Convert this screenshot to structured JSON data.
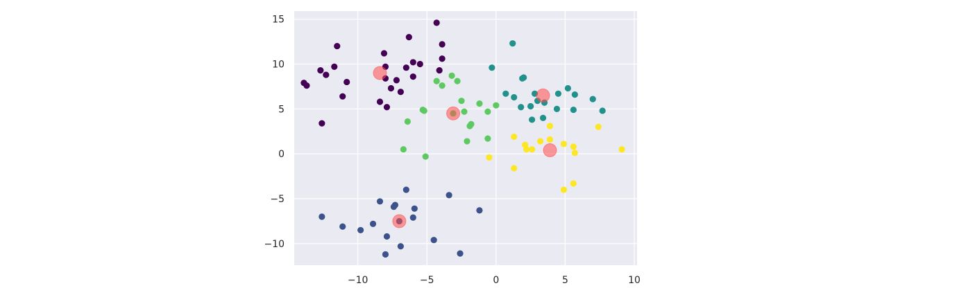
{
  "chart_data": {
    "type": "scatter",
    "title": "",
    "xlabel": "",
    "ylabel": "",
    "xlim": [
      -14.6,
      10.2
    ],
    "ylim": [
      -12.4,
      15.9
    ],
    "xticks": [
      -10,
      -5,
      0,
      5,
      10
    ],
    "yticks": [
      -10,
      -5,
      0,
      5,
      10,
      15
    ],
    "xtick_labels": [
      "−10",
      "−5",
      "0",
      "5",
      "10"
    ],
    "ytick_labels": [
      "−10",
      "−5",
      "0",
      "5",
      "10",
      "15"
    ],
    "grid": true,
    "legend": "none",
    "colors": {
      "background": "#eaeaf2",
      "grid": "#ffffff",
      "cluster_purple": "#440154",
      "cluster_blue": "#3b528b",
      "cluster_teal": "#21918c",
      "cluster_green": "#5ec962",
      "cluster_yellow": "#fde725",
      "centers": "#ff4d4d"
    },
    "series": [
      {
        "color_key": "cluster_purple",
        "points": [
          [
            -4.3,
            14.6
          ],
          [
            -6.3,
            13.0
          ],
          [
            -3.9,
            12.2
          ],
          [
            -11.5,
            12.0
          ],
          [
            -8.1,
            11.2
          ],
          [
            -3.9,
            10.6
          ],
          [
            -6.0,
            10.2
          ],
          [
            -5.5,
            10.0
          ],
          [
            -11.7,
            9.7
          ],
          [
            -8.0,
            9.7
          ],
          [
            -6.5,
            9.6
          ],
          [
            -12.7,
            9.3
          ],
          [
            -4.1,
            9.3
          ],
          [
            -12.3,
            8.8
          ],
          [
            -6.0,
            8.6
          ],
          [
            -8.0,
            8.4
          ],
          [
            -7.2,
            8.2
          ],
          [
            -10.8,
            8.0
          ],
          [
            -13.9,
            7.9
          ],
          [
            -13.7,
            7.6
          ],
          [
            -7.6,
            7.3
          ],
          [
            -6.9,
            6.9
          ],
          [
            -11.1,
            6.4
          ],
          [
            -8.4,
            5.8
          ],
          [
            -7.9,
            5.2
          ],
          [
            -12.6,
            3.4
          ]
        ]
      },
      {
        "color_key": "cluster_blue",
        "points": [
          [
            -6.5,
            -4.0
          ],
          [
            -3.4,
            -4.6
          ],
          [
            -8.4,
            -5.3
          ],
          [
            -7.3,
            -5.7
          ],
          [
            -7.4,
            -5.9
          ],
          [
            -5.9,
            -6.1
          ],
          [
            -1.2,
            -6.3
          ],
          [
            -12.6,
            -7.0
          ],
          [
            -6.0,
            -7.1
          ],
          [
            -7.0,
            -7.5
          ],
          [
            -11.1,
            -8.1
          ],
          [
            -8.9,
            -7.8
          ],
          [
            -9.8,
            -8.5
          ],
          [
            -7.9,
            -9.2
          ],
          [
            -4.5,
            -9.6
          ],
          [
            -6.9,
            -10.3
          ],
          [
            -8.0,
            -11.2
          ],
          [
            -2.6,
            -11.1
          ]
        ]
      },
      {
        "color_key": "cluster_teal",
        "points": [
          [
            1.2,
            12.3
          ],
          [
            -0.3,
            9.6
          ],
          [
            2.0,
            8.5
          ],
          [
            1.9,
            8.4
          ],
          [
            5.2,
            7.3
          ],
          [
            0.7,
            6.7
          ],
          [
            2.8,
            6.7
          ],
          [
            4.5,
            6.7
          ],
          [
            5.7,
            6.6
          ],
          [
            1.3,
            6.3
          ],
          [
            7.0,
            6.1
          ],
          [
            3.0,
            5.9
          ],
          [
            3.5,
            5.7
          ],
          [
            2.5,
            5.3
          ],
          [
            1.8,
            5.2
          ],
          [
            4.4,
            5.0
          ],
          [
            5.6,
            4.9
          ],
          [
            7.7,
            4.8
          ],
          [
            3.4,
            4.0
          ],
          [
            2.6,
            3.8
          ]
        ]
      },
      {
        "color_key": "cluster_green",
        "points": [
          [
            -3.2,
            8.7
          ],
          [
            -2.8,
            8.1
          ],
          [
            -4.3,
            8.1
          ],
          [
            -3.9,
            7.6
          ],
          [
            -2.5,
            5.9
          ],
          [
            -1.2,
            5.6
          ],
          [
            0.0,
            5.4
          ],
          [
            -5.3,
            4.9
          ],
          [
            -5.2,
            4.8
          ],
          [
            -2.3,
            4.7
          ],
          [
            -0.6,
            4.7
          ],
          [
            -3.1,
            4.5
          ],
          [
            -6.4,
            3.6
          ],
          [
            -1.8,
            3.3
          ],
          [
            -1.9,
            3.1
          ],
          [
            -0.6,
            1.7
          ],
          [
            -2.1,
            1.4
          ],
          [
            -6.7,
            0.5
          ],
          [
            -5.1,
            -0.3
          ]
        ]
      },
      {
        "color_key": "cluster_yellow",
        "points": [
          [
            3.9,
            3.1
          ],
          [
            7.4,
            3.0
          ],
          [
            1.3,
            1.9
          ],
          [
            3.9,
            1.6
          ],
          [
            3.2,
            1.4
          ],
          [
            4.9,
            1.1
          ],
          [
            2.1,
            1.0
          ],
          [
            5.6,
            0.8
          ],
          [
            2.2,
            0.5
          ],
          [
            2.6,
            0.5
          ],
          [
            9.1,
            0.5
          ],
          [
            5.7,
            0.1
          ],
          [
            -0.5,
            -0.4
          ],
          [
            1.3,
            -1.6
          ],
          [
            5.6,
            -3.3
          ],
          [
            4.9,
            -4.0
          ]
        ]
      }
    ],
    "centers": {
      "color_key": "centers",
      "opacity": 0.55,
      "points": [
        [
          -8.4,
          9.0
        ],
        [
          -3.1,
          4.5
        ],
        [
          3.4,
          6.5
        ],
        [
          3.9,
          0.4
        ],
        [
          -7.0,
          -7.5
        ]
      ]
    }
  }
}
